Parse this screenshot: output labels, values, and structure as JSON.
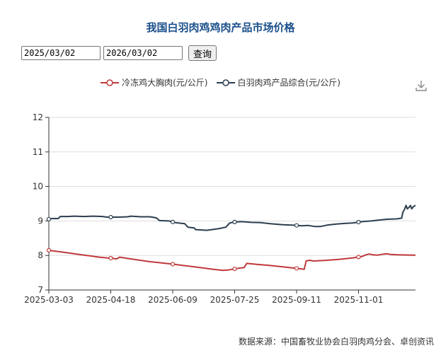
{
  "chart_data": {
    "type": "line",
    "title": "我国白羽肉鸡鸡肉产品市场价格",
    "ylim": [
      7,
      12
    ],
    "yticks": [
      7,
      8,
      9,
      10,
      11,
      12
    ],
    "x_tick_labels": [
      "2025-03-03",
      "2025-04-18",
      "2025-06-09",
      "2025-07-25",
      "2025-09-11",
      "2025-11-01"
    ],
    "legend_position": "top-center",
    "grid": true,
    "series": [
      {
        "name": "冷冻鸡大胸肉(元/公斤)",
        "color": "#c0393b",
        "values": [
          [
            0,
            8.15
          ],
          [
            8,
            8.13
          ],
          [
            20,
            8.1
          ],
          [
            40,
            8.05
          ],
          [
            60,
            8.0
          ],
          [
            80,
            7.95
          ],
          [
            92,
            7.93
          ],
          [
            100,
            7.92
          ],
          [
            107,
            7.9
          ],
          [
            112,
            7.95
          ],
          [
            130,
            7.9
          ],
          [
            160,
            7.82
          ],
          [
            175,
            7.79
          ],
          [
            200,
            7.74
          ],
          [
            230,
            7.67
          ],
          [
            260,
            7.6
          ],
          [
            270,
            7.58
          ],
          [
            275,
            7.57
          ],
          [
            284,
            7.58
          ],
          [
            300,
            7.63
          ],
          [
            309,
            7.65
          ],
          [
            313,
            7.77
          ],
          [
            330,
            7.74
          ],
          [
            350,
            7.71
          ],
          [
            370,
            7.67
          ],
          [
            385,
            7.64
          ],
          [
            400,
            7.61
          ],
          [
            404,
            7.6
          ],
          [
            407,
            7.84
          ],
          [
            412,
            7.86
          ],
          [
            419,
            7.84
          ],
          [
            440,
            7.86
          ],
          [
            460,
            7.89
          ],
          [
            481,
            7.93
          ],
          [
            495,
            7.97
          ],
          [
            502,
            8.02
          ],
          [
            507,
            8.04
          ],
          [
            512,
            8.02
          ],
          [
            520,
            8.01
          ],
          [
            530,
            8.04
          ],
          [
            535,
            8.05
          ],
          [
            540,
            8.03
          ],
          [
            552,
            8.02
          ],
          [
            575,
            8.01
          ],
          [
            580,
            8.01
          ]
        ]
      },
      {
        "name": "白羽肉鸡产品综合(元/公斤)",
        "color": "#2c3e50",
        "values": [
          [
            0,
            9.05
          ],
          [
            5,
            9.07
          ],
          [
            15,
            9.07
          ],
          [
            18,
            9.13
          ],
          [
            30,
            9.13
          ],
          [
            40,
            9.14
          ],
          [
            55,
            9.13
          ],
          [
            70,
            9.14
          ],
          [
            85,
            9.13
          ],
          [
            92,
            9.11
          ],
          [
            110,
            9.11
          ],
          [
            125,
            9.12
          ],
          [
            130,
            9.14
          ],
          [
            145,
            9.12
          ],
          [
            160,
            9.12
          ],
          [
            170,
            9.09
          ],
          [
            175,
            9.01
          ],
          [
            190,
            9.0
          ],
          [
            200,
            8.95
          ],
          [
            215,
            8.92
          ],
          [
            220,
            8.82
          ],
          [
            230,
            8.8
          ],
          [
            232,
            8.75
          ],
          [
            250,
            8.73
          ],
          [
            262,
            8.76
          ],
          [
            270,
            8.78
          ],
          [
            280,
            8.82
          ],
          [
            286,
            8.94
          ],
          [
            294,
            8.97
          ],
          [
            305,
            8.98
          ],
          [
            320,
            8.96
          ],
          [
            335,
            8.95
          ],
          [
            350,
            8.92
          ],
          [
            370,
            8.89
          ],
          [
            385,
            8.88
          ],
          [
            400,
            8.86
          ],
          [
            410,
            8.87
          ],
          [
            420,
            8.84
          ],
          [
            430,
            8.84
          ],
          [
            440,
            8.88
          ],
          [
            455,
            8.91
          ],
          [
            470,
            8.93
          ],
          [
            481,
            8.94
          ],
          [
            495,
            8.98
          ],
          [
            510,
            9.0
          ],
          [
            520,
            9.02
          ],
          [
            535,
            9.05
          ],
          [
            550,
            9.06
          ],
          [
            558,
            9.08
          ],
          [
            560,
            9.25
          ],
          [
            563,
            9.35
          ],
          [
            565,
            9.45
          ],
          [
            567,
            9.35
          ],
          [
            570,
            9.4
          ],
          [
            572,
            9.45
          ],
          [
            574,
            9.35
          ],
          [
            577,
            9.42
          ],
          [
            580,
            9.45
          ]
        ]
      }
    ]
  },
  "controls": {
    "start_date": "2025/03/02",
    "end_date": "2026/03/02",
    "query_label": "查询"
  },
  "icons": {
    "download": "download-icon",
    "calendar": "calendar-icon"
  },
  "source": "数据来源：中国畜牧业协会白羽肉鸡分会、卓创资讯"
}
